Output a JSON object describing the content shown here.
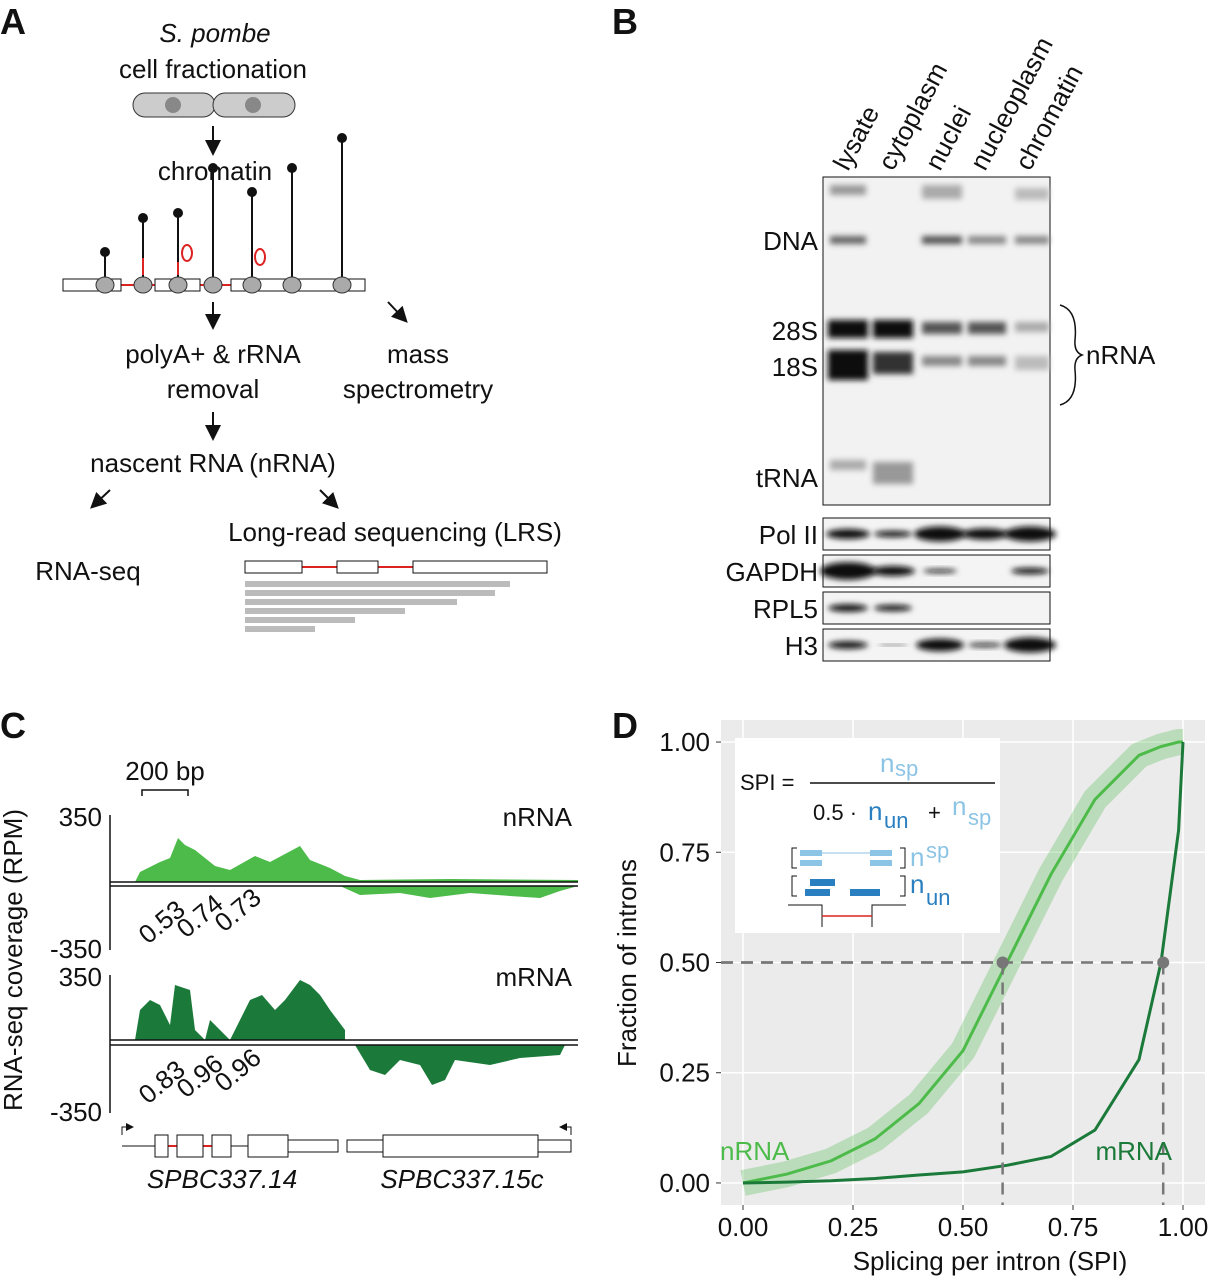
{
  "panel_a": {
    "letter": "A",
    "species": "S. pombe",
    "step1": "cell fractionation",
    "chromatin": "chromatin",
    "removal_line1": "polyA+ & rRNA",
    "removal_line2": "removal",
    "ms_line1": "mass",
    "ms_line2": "spectrometry",
    "nascent": "nascent RNA (nRNA)",
    "lrs": "Long-read sequencing (LRS)",
    "rnaseq": "RNA-seq"
  },
  "panel_b": {
    "letter": "B",
    "lanes": [
      "lysate",
      "cytoplasm",
      "nuclei",
      "nucleoplasm",
      "chromatin"
    ],
    "gel_bands": [
      "DNA",
      "28S",
      "18S",
      "tRNA"
    ],
    "bracket_label": "nRNA",
    "blots": [
      "Pol II",
      "GAPDH",
      "RPL5",
      "H3"
    ]
  },
  "panel_c": {
    "letter": "C",
    "scale_bar": "200 bp",
    "y_axis_label": "RNA-seq coverage (RPM)",
    "tracks": [
      {
        "name": "nRNA",
        "ymax": 350,
        "ymin": -350,
        "spi": [
          0.53,
          0.74,
          0.73
        ]
      },
      {
        "name": "mRNA",
        "ymax": 350,
        "ymin": -350,
        "spi": [
          0.83,
          0.96,
          0.96
        ]
      }
    ],
    "genes": [
      "SPBC337.14",
      "SPBC337.15c"
    ]
  },
  "panel_d": {
    "letter": "D",
    "inset": {
      "lhs": "SPI =",
      "num_n": "n",
      "num_sub": "sp",
      "den_pre": "0.5 ·",
      "den_n": "n",
      "den_sub": "un",
      "plus": "+",
      "den_n2": "n",
      "den_sub2": "sp",
      "leg_sp_n": "n",
      "leg_sp_sub": "sp",
      "leg_un_n": "n",
      "leg_un_sub": "un"
    }
  },
  "chart_data": {
    "type": "line",
    "xlabel": "Splicing per intron (SPI)",
    "ylabel": "Fraction of introns",
    "x": [
      0,
      0.1,
      0.2,
      0.3,
      0.4,
      0.5,
      0.6,
      0.7,
      0.8,
      0.9,
      0.95,
      0.99,
      1.0
    ],
    "series": [
      {
        "name": "nRNA",
        "color": "#4dbb4a",
        "values": [
          0,
          0.02,
          0.05,
          0.1,
          0.18,
          0.3,
          0.5,
          0.7,
          0.87,
          0.97,
          0.99,
          1.0,
          1.0
        ]
      },
      {
        "name": "mRNA",
        "color": "#1b7a3a",
        "values": [
          0,
          0.002,
          0.005,
          0.01,
          0.018,
          0.025,
          0.04,
          0.06,
          0.12,
          0.28,
          0.5,
          0.8,
          1.0
        ]
      }
    ],
    "xlim": [
      -0.05,
      1.05
    ],
    "ylim": [
      -0.05,
      1.05
    ],
    "xticks": [
      {
        "value": 0,
        "label": "0.00"
      },
      {
        "value": 0.25,
        "label": "0.25"
      },
      {
        "value": 0.5,
        "label": "0.50"
      },
      {
        "value": 0.75,
        "label": "0.75"
      },
      {
        "value": 1,
        "label": "1.00"
      }
    ],
    "yticks": [
      {
        "value": 0,
        "label": "0.00"
      },
      {
        "value": 0.25,
        "label": "0.25"
      },
      {
        "value": 0.5,
        "label": "0.50"
      },
      {
        "value": 0.75,
        "label": "0.75"
      },
      {
        "value": 1,
        "label": "1.00"
      }
    ],
    "grid": true,
    "reference_y": 0.5,
    "reference_x": [
      0.59,
      0.955
    ]
  }
}
